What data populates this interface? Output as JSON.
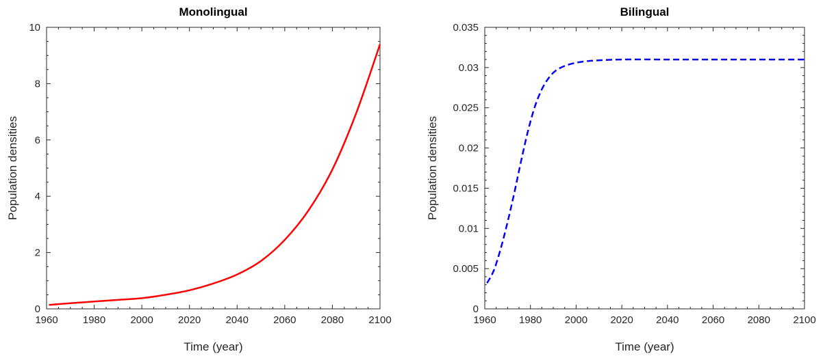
{
  "chart_data": [
    {
      "type": "line",
      "title": "Monolingual",
      "xlabel": "Time (year)",
      "ylabel": "Population densities",
      "xlim": [
        1960,
        2100
      ],
      "ylim": [
        0,
        10
      ],
      "xticks": [
        1960,
        1980,
        2000,
        2020,
        2040,
        2060,
        2080,
        2100
      ],
      "yticks": [
        0,
        2,
        4,
        6,
        8,
        10
      ],
      "ytick_labels": [
        "0",
        "2",
        "4",
        "6",
        "8",
        "10"
      ],
      "grid": false,
      "series": [
        {
          "color": "#ff0000",
          "dash": "solid",
          "x": [
            1961,
            1970,
            1980,
            1990,
            2000,
            2010,
            2020,
            2030,
            2040,
            2050,
            2060,
            2070,
            2080,
            2090,
            2100
          ],
          "values": [
            0.14,
            0.2,
            0.26,
            0.32,
            0.38,
            0.5,
            0.66,
            0.9,
            1.22,
            1.7,
            2.45,
            3.5,
            4.95,
            6.95,
            9.4
          ]
        }
      ]
    },
    {
      "type": "line",
      "title": "Bilingual",
      "xlabel": "Time (year)",
      "ylabel": "Population densities",
      "xlim": [
        1960,
        2100
      ],
      "ylim": [
        0,
        0.035
      ],
      "xticks": [
        1960,
        1980,
        2000,
        2020,
        2040,
        2060,
        2080,
        2100
      ],
      "yticks": [
        0,
        0.005,
        0.01,
        0.015,
        0.02,
        0.025,
        0.03,
        0.035
      ],
      "ytick_labels": [
        "0",
        "0.005",
        "0.01",
        "0.015",
        "0.02",
        "0.025",
        "0.03",
        "0.035"
      ],
      "grid": false,
      "series": [
        {
          "color": "#0000ff",
          "dash": "dashed",
          "x": [
            1961,
            1964,
            1967,
            1970,
            1973,
            1976,
            1979,
            1982,
            1985,
            1988,
            1991,
            1995,
            2000,
            2005,
            2010,
            2020,
            2040,
            2060,
            2080,
            2100
          ],
          "values": [
            0.0032,
            0.0048,
            0.0075,
            0.0108,
            0.0145,
            0.0185,
            0.0222,
            0.0252,
            0.0273,
            0.0287,
            0.0296,
            0.0302,
            0.0306,
            0.0308,
            0.0309,
            0.031,
            0.031,
            0.031,
            0.031,
            0.031
          ]
        }
      ]
    }
  ]
}
